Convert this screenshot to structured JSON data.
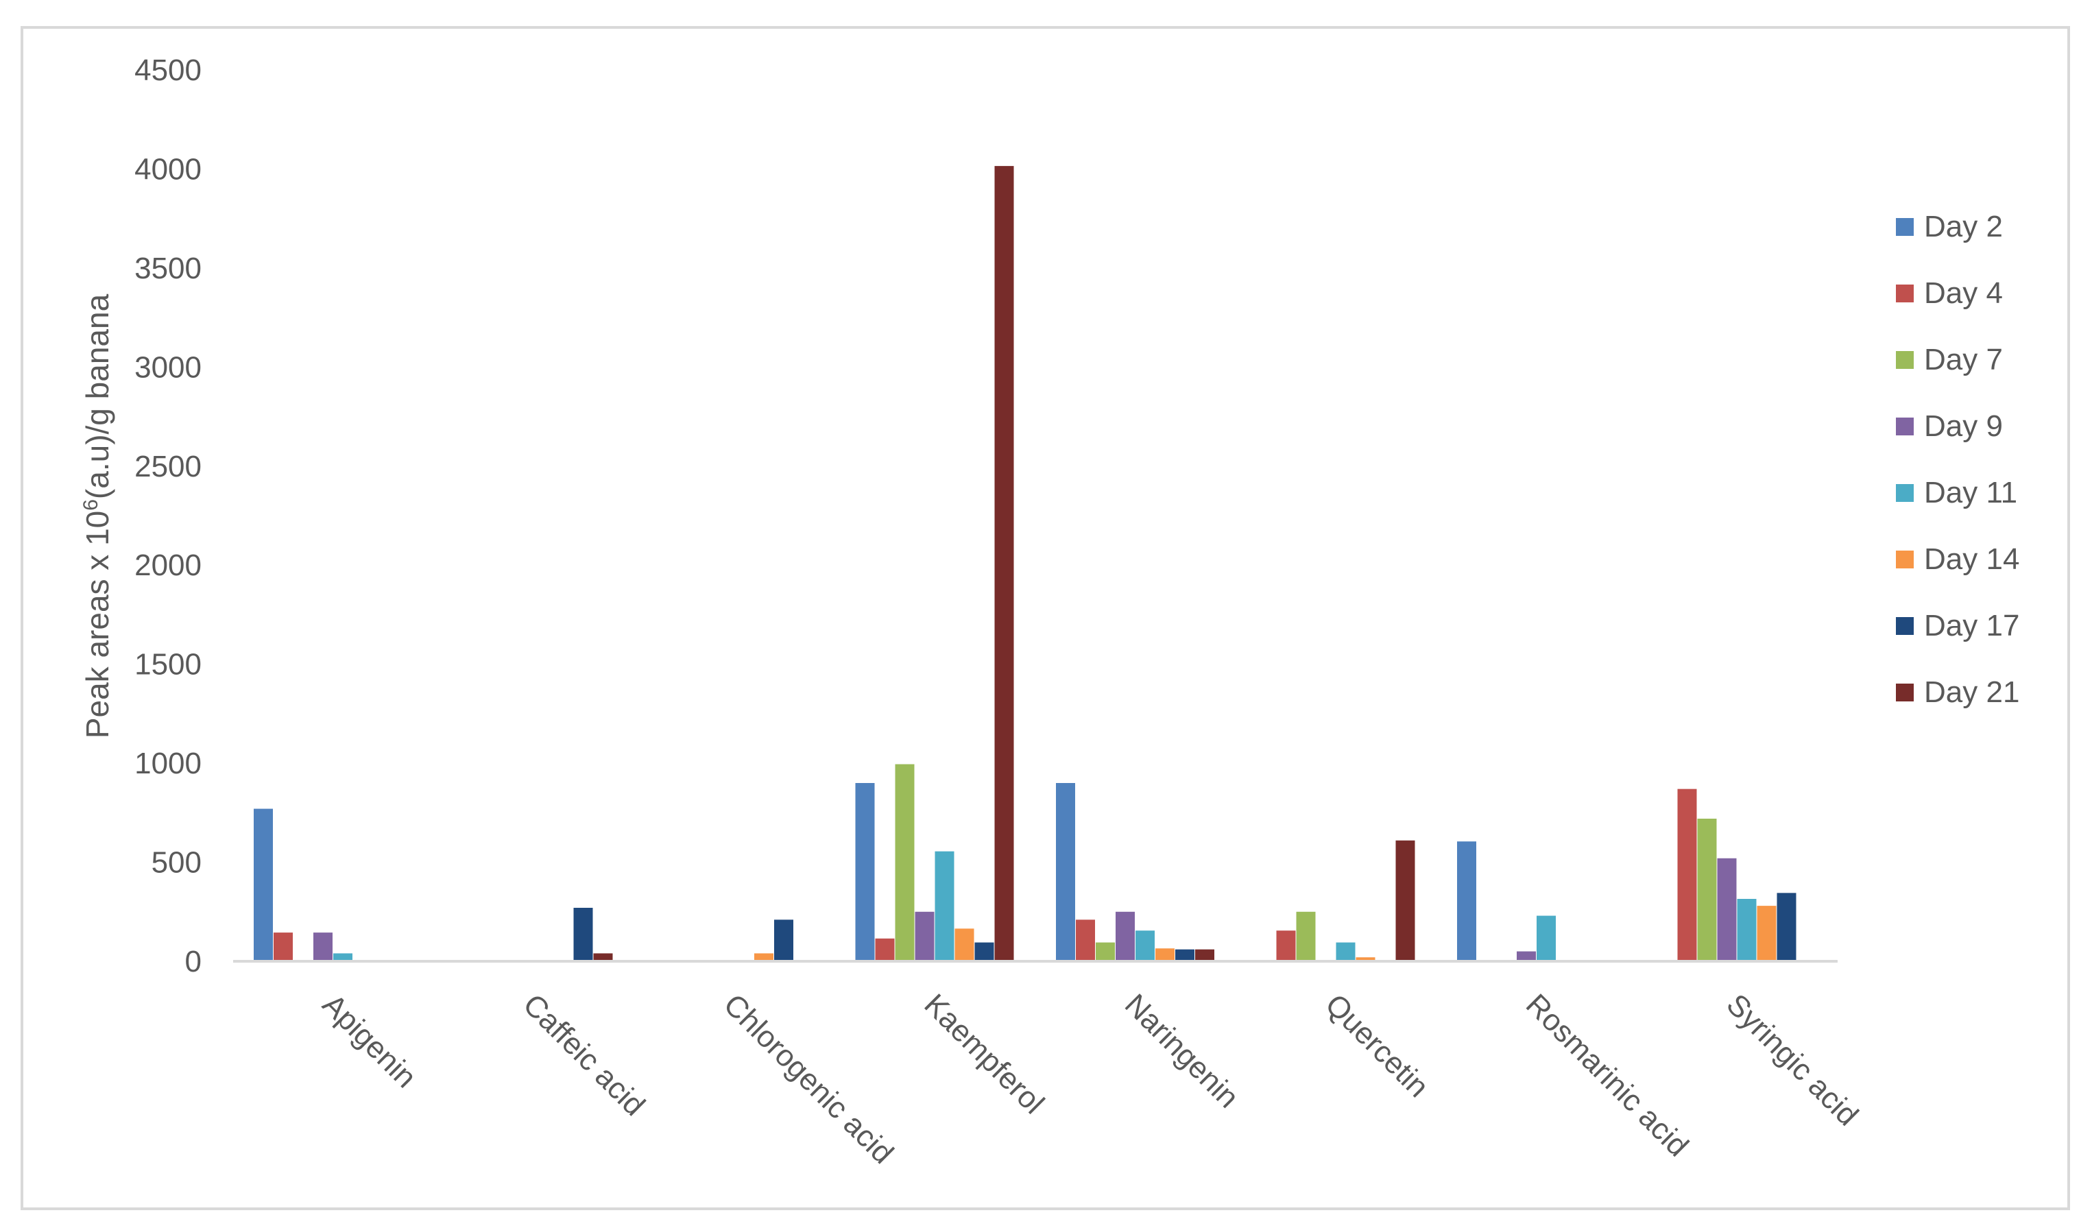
{
  "chart_data": {
    "type": "bar",
    "ylabel_main": "Peak areas x 10",
    "ylabel_sup": "6",
    "ylabel_rest": "(a.u)/g banana",
    "ylim": [
      0,
      4500
    ],
    "yticks": [
      "0",
      "500",
      "1000",
      "1500",
      "2000",
      "2500",
      "3000",
      "3500",
      "4000",
      "4500"
    ],
    "grid": false,
    "legend_position": "right",
    "categories": [
      "Apigenin",
      "Caffeic acid",
      "Chlorogenic acid",
      "Kaempferol",
      "Naringenin",
      "Quercetin",
      "Rosmarinic acid",
      "Syringic acid"
    ],
    "series": [
      {
        "name": "Day 2",
        "color": "#4F81BD",
        "values": [
          770,
          0,
          0,
          900,
          900,
          0,
          605,
          0
        ]
      },
      {
        "name": "Day 4",
        "color": "#C0504D",
        "values": [
          145,
          0,
          0,
          115,
          210,
          155,
          0,
          870
        ]
      },
      {
        "name": "Day 7",
        "color": "#9BBB59",
        "values": [
          0,
          0,
          0,
          995,
          95,
          250,
          0,
          720
        ]
      },
      {
        "name": "Day 9",
        "color": "#8064A2",
        "values": [
          145,
          0,
          0,
          250,
          250,
          0,
          50,
          520
        ]
      },
      {
        "name": "Day 11",
        "color": "#4BACC6",
        "values": [
          40,
          0,
          0,
          555,
          155,
          95,
          230,
          315
        ]
      },
      {
        "name": "Day 14",
        "color": "#F79646",
        "values": [
          0,
          0,
          40,
          165,
          65,
          20,
          0,
          280
        ]
      },
      {
        "name": "Day 17",
        "color": "#1F497D",
        "values": [
          0,
          270,
          210,
          95,
          60,
          0,
          0,
          345
        ]
      },
      {
        "name": "Day 21",
        "color": "#772C2A",
        "values": [
          0,
          40,
          0,
          4015,
          60,
          610,
          0,
          0
        ]
      }
    ]
  }
}
